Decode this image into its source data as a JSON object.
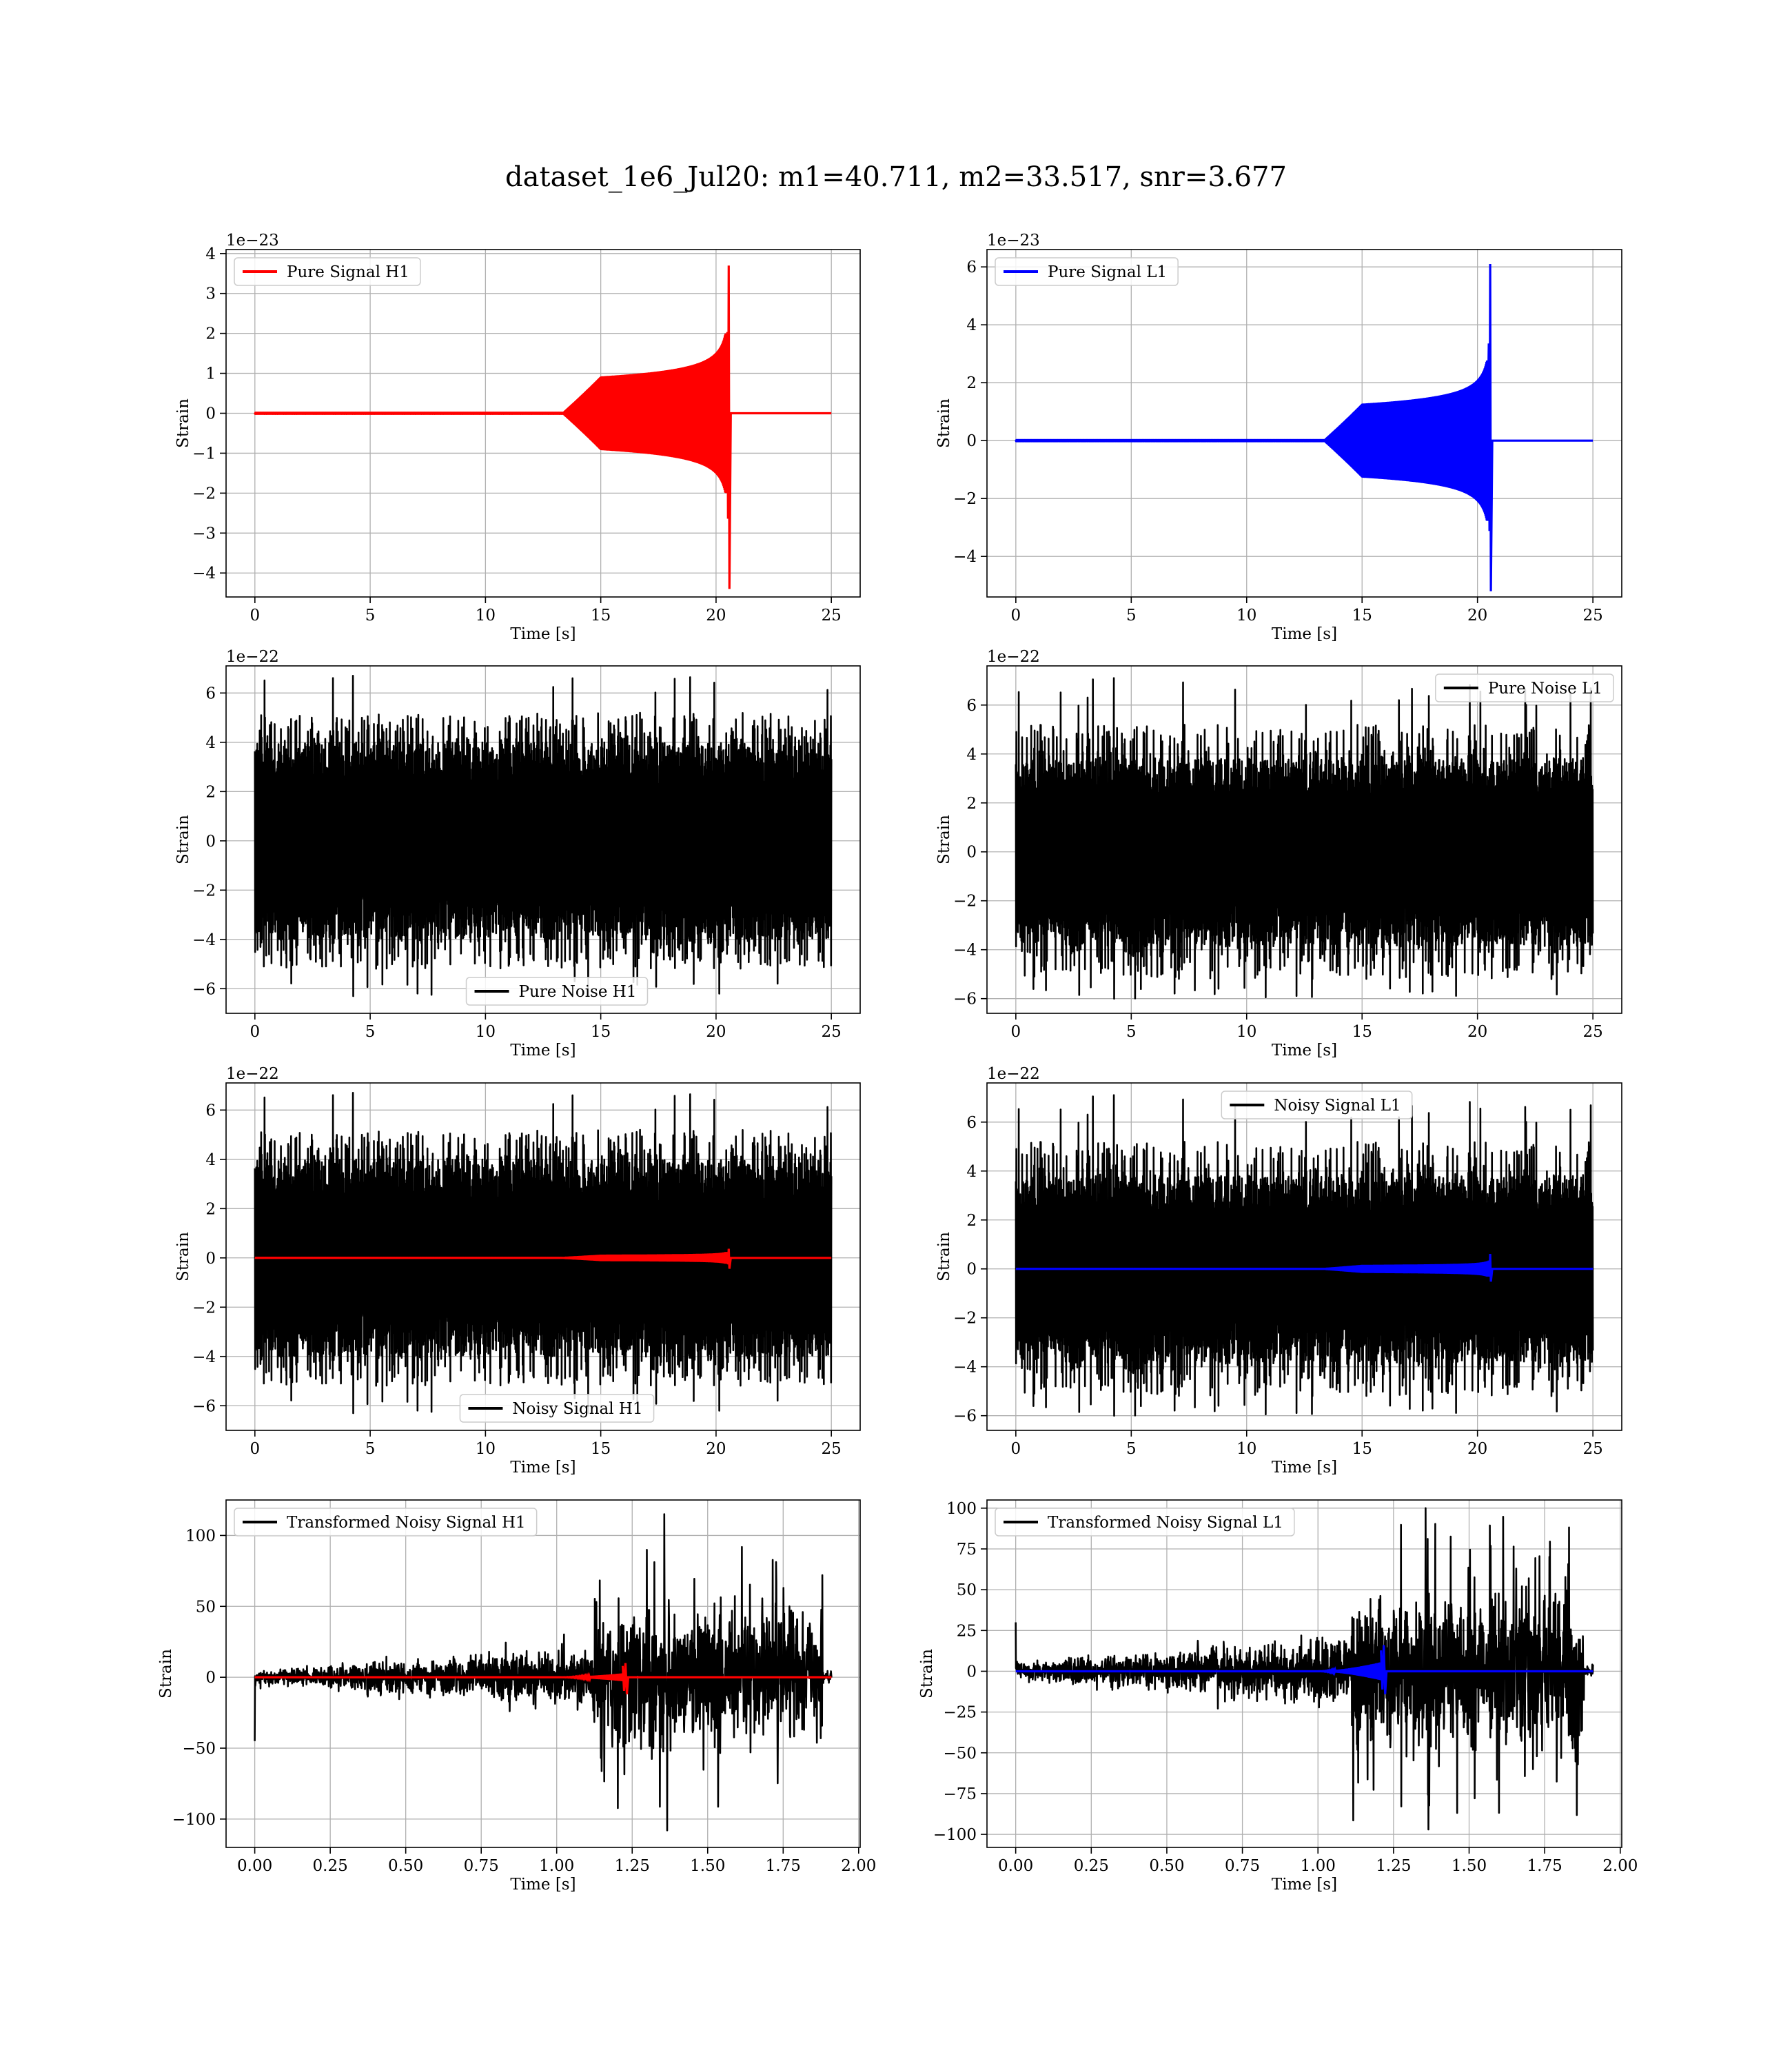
{
  "figure": {
    "title": "dataset_1e6_Jul20: m1=40.711, m2=33.517, snr=3.677"
  },
  "colors": {
    "h1_signal": "#ff0000",
    "l1_signal": "#0000ff",
    "noise": "#000000"
  },
  "chart_data": [
    {
      "id": "pure-signal-h1",
      "type": "line",
      "xlabel": "Time [s]",
      "ylabel": "Strain",
      "offset_text": "1e−23",
      "xlim": [
        -1.25,
        26.25
      ],
      "ylim": [
        -4.6,
        4.1
      ],
      "xticks": [
        0,
        5,
        10,
        15,
        20,
        25
      ],
      "xtick_labels": [
        "0",
        "5",
        "10",
        "15",
        "20",
        "25"
      ],
      "yticks": [
        -4,
        -3,
        -2,
        -1,
        0,
        1,
        2,
        3,
        4
      ],
      "ytick_labels": [
        "−4",
        "−3",
        "−2",
        "−1",
        "0",
        "1",
        "2",
        "3",
        "4"
      ],
      "legend_position": "top-left",
      "series": [
        {
          "name": "Pure Signal H1",
          "color": "#ff0000",
          "kind": "chirp",
          "x_start": 0,
          "x_end": 25,
          "merger_time": 20.55,
          "amplitude": 1.3,
          "peak_max": 3.7,
          "peak_min": -4.4
        }
      ]
    },
    {
      "id": "pure-signal-l1",
      "type": "line",
      "xlabel": "Time [s]",
      "ylabel": "Strain",
      "offset_text": "1e−23",
      "xlim": [
        -1.25,
        26.25
      ],
      "ylim": [
        -5.4,
        6.6
      ],
      "xticks": [
        0,
        5,
        10,
        15,
        20,
        25
      ],
      "xtick_labels": [
        "0",
        "5",
        "10",
        "15",
        "20",
        "25"
      ],
      "yticks": [
        -4,
        -2,
        0,
        2,
        4,
        6
      ],
      "ytick_labels": [
        "−4",
        "−2",
        "0",
        "2",
        "4",
        "6"
      ],
      "legend_position": "top-left",
      "series": [
        {
          "name": "Pure Signal L1",
          "color": "#0000ff",
          "kind": "chirp",
          "x_start": 0,
          "x_end": 25,
          "merger_time": 20.55,
          "amplitude": 1.8,
          "peak_max": 6.1,
          "peak_min": -5.2
        }
      ]
    },
    {
      "id": "pure-noise-h1",
      "type": "line",
      "xlabel": "Time [s]",
      "ylabel": "Strain",
      "offset_text": "1e−22",
      "xlim": [
        -1.25,
        26.25
      ],
      "ylim": [
        -7.0,
        7.1
      ],
      "xticks": [
        0,
        5,
        10,
        15,
        20,
        25
      ],
      "xtick_labels": [
        "0",
        "5",
        "10",
        "15",
        "20",
        "25"
      ],
      "yticks": [
        -6,
        -4,
        -2,
        0,
        2,
        4,
        6
      ],
      "ytick_labels": [
        "−6",
        "−4",
        "−2",
        "0",
        "2",
        "4",
        "6"
      ],
      "legend_position": "lower-center",
      "series": [
        {
          "name": "Pure Noise H1",
          "color": "#000000",
          "kind": "noise",
          "x_start": 0,
          "x_end": 25,
          "core": 4.0,
          "envelope": 5.2,
          "max": 6.7,
          "min": -6.3
        }
      ]
    },
    {
      "id": "pure-noise-l1",
      "type": "line",
      "xlabel": "Time [s]",
      "ylabel": "Strain",
      "offset_text": "1e−22",
      "xlim": [
        -1.25,
        26.25
      ],
      "ylim": [
        -6.6,
        7.6
      ],
      "xticks": [
        0,
        5,
        10,
        15,
        20,
        25
      ],
      "xtick_labels": [
        "0",
        "5",
        "10",
        "15",
        "20",
        "25"
      ],
      "yticks": [
        -6,
        -4,
        -2,
        0,
        2,
        4,
        6
      ],
      "ytick_labels": [
        "−6",
        "−4",
        "−2",
        "0",
        "2",
        "4",
        "6"
      ],
      "legend_position": "top-right",
      "series": [
        {
          "name": "Pure Noise L1",
          "color": "#000000",
          "kind": "noise",
          "x_start": 0,
          "x_end": 25,
          "core": 3.8,
          "envelope": 5.2,
          "max": 7.1,
          "min": -6.0
        }
      ]
    },
    {
      "id": "noisy-signal-h1",
      "type": "line",
      "xlabel": "Time [s]",
      "ylabel": "Strain",
      "offset_text": "1e−22",
      "xlim": [
        -1.25,
        26.25
      ],
      "ylim": [
        -7.0,
        7.1
      ],
      "xticks": [
        0,
        5,
        10,
        15,
        20,
        25
      ],
      "xtick_labels": [
        "0",
        "5",
        "10",
        "15",
        "20",
        "25"
      ],
      "yticks": [
        -6,
        -4,
        -2,
        0,
        2,
        4,
        6
      ],
      "ytick_labels": [
        "−6",
        "−4",
        "−2",
        "0",
        "2",
        "4",
        "6"
      ],
      "legend_position": "lower-center",
      "series": [
        {
          "name": "Noisy Signal H1",
          "color": "#000000",
          "kind": "noise",
          "x_start": 0,
          "x_end": 25,
          "core": 4.0,
          "envelope": 5.2,
          "max": 6.7,
          "min": -6.3
        },
        {
          "color": "#ff0000",
          "kind": "chirp",
          "x_start": 0,
          "x_end": 25,
          "merger_time": 20.55,
          "amplitude": 0.13,
          "peak_max": 0.37,
          "peak_min": -0.44
        }
      ]
    },
    {
      "id": "noisy-signal-l1",
      "type": "line",
      "xlabel": "Time [s]",
      "ylabel": "Strain",
      "offset_text": "1e−22",
      "xlim": [
        -1.25,
        26.25
      ],
      "ylim": [
        -6.6,
        7.6
      ],
      "xticks": [
        0,
        5,
        10,
        15,
        20,
        25
      ],
      "xtick_labels": [
        "0",
        "5",
        "10",
        "15",
        "20",
        "25"
      ],
      "yticks": [
        -6,
        -4,
        -2,
        0,
        2,
        4,
        6
      ],
      "ytick_labels": [
        "−6",
        "−4",
        "−2",
        "0",
        "2",
        "4",
        "6"
      ],
      "legend_position": "upper-center",
      "series": [
        {
          "name": "Noisy Signal L1",
          "color": "#000000",
          "kind": "noise",
          "x_start": 0,
          "x_end": 25,
          "core": 3.8,
          "envelope": 5.2,
          "max": 7.1,
          "min": -6.0
        },
        {
          "color": "#0000ff",
          "kind": "chirp",
          "x_start": 0,
          "x_end": 25,
          "merger_time": 20.55,
          "amplitude": 0.18,
          "peak_max": 0.61,
          "peak_min": -0.52
        }
      ]
    },
    {
      "id": "transformed-h1",
      "type": "line",
      "xlabel": "Time [s]",
      "ylabel": "Strain",
      "offset_text": "",
      "xlim": [
        -0.095,
        2.005
      ],
      "ylim": [
        -120,
        125
      ],
      "xticks": [
        0,
        0.25,
        0.5,
        0.75,
        1.0,
        1.25,
        1.5,
        1.75,
        2.0
      ],
      "xtick_labels": [
        "0.00",
        "0.25",
        "0.50",
        "0.75",
        "1.00",
        "1.25",
        "1.50",
        "1.75",
        "2.00"
      ],
      "yticks": [
        -100,
        -50,
        0,
        50,
        100
      ],
      "ytick_labels": [
        "−100",
        "−50",
        "0",
        "50",
        "100"
      ],
      "legend_position": "top-left",
      "series": [
        {
          "name": "Transformed Noisy Signal H1",
          "color": "#000000",
          "kind": "whitened",
          "x_start": 0,
          "x_end": 1.91,
          "x_cut": 1.88,
          "x_burst": 1.12,
          "start_spike": -45,
          "max": 115,
          "min": -108
        },
        {
          "color": "#ff0000",
          "kind": "chirp",
          "x_start": 0,
          "x_end": 1.91,
          "merger_time": 1.23,
          "amplitude": 3.0,
          "peak_max": 10,
          "peak_min": -12
        }
      ]
    },
    {
      "id": "transformed-l1",
      "type": "line",
      "xlabel": "Time [s]",
      "ylabel": "Strain",
      "offset_text": "",
      "xlim": [
        -0.095,
        2.005
      ],
      "ylim": [
        -108,
        105
      ],
      "xticks": [
        0,
        0.25,
        0.5,
        0.75,
        1.0,
        1.25,
        1.5,
        1.75,
        2.0
      ],
      "xtick_labels": [
        "0.00",
        "0.25",
        "0.50",
        "0.75",
        "1.00",
        "1.25",
        "1.50",
        "1.75",
        "2.00"
      ],
      "yticks": [
        -100,
        -75,
        -50,
        -25,
        0,
        25,
        50,
        75,
        100
      ],
      "ytick_labels": [
        "−100",
        "−75",
        "−50",
        "−25",
        "0",
        "25",
        "50",
        "75",
        "100"
      ],
      "legend_position": "top-left",
      "series": [
        {
          "name": "Transformed Noisy Signal L1",
          "color": "#000000",
          "kind": "whitened",
          "x_start": 0,
          "x_end": 1.91,
          "x_cut": 1.88,
          "x_burst": 1.11,
          "start_spike": 30,
          "max": 100,
          "min": -97
        },
        {
          "color": "#0000ff",
          "kind": "chirp",
          "x_start": 0,
          "x_end": 1.91,
          "merger_time": 1.22,
          "amplitude": 6.0,
          "peak_max": 16,
          "peak_min": -14
        }
      ]
    }
  ]
}
